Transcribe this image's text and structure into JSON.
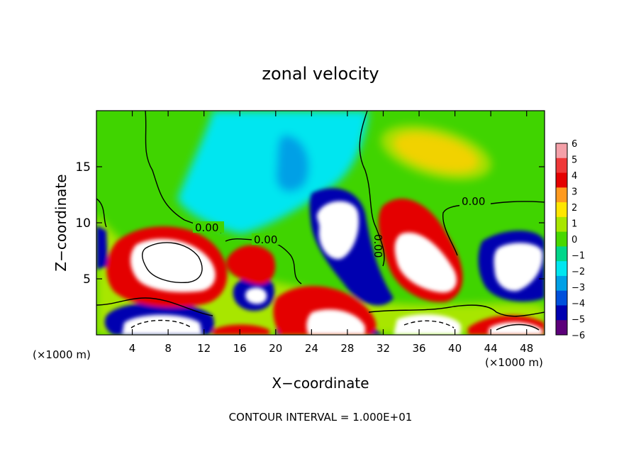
{
  "chart_data": {
    "type": "heatmap",
    "title": "zonal velocity",
    "xlabel": "X−coordinate",
    "ylabel": "Z−coordinate",
    "x_unit_left": "(×1000 m)",
    "x_unit_right": "(×1000 m)",
    "footer": "CONTOUR INTERVAL = 1.000E+01",
    "xlim": [
      0,
      50
    ],
    "ylim": [
      0,
      20
    ],
    "x_ticks": [
      4,
      8,
      12,
      16,
      20,
      24,
      28,
      32,
      36,
      40,
      44,
      48
    ],
    "y_ticks": [
      5,
      10,
      15
    ],
    "colorbar": {
      "levels": [
        6,
        5,
        4,
        3,
        2,
        1,
        0,
        -1,
        -2,
        -3,
        -4,
        -5,
        -6
      ],
      "colors": [
        "#f4a0a8",
        "#ef3838",
        "#e40000",
        "#ff9a1e",
        "#ffe600",
        "#a8e600",
        "#48d800",
        "#00d68a",
        "#00e6f0",
        "#00a0e6",
        "#0050dc",
        "#0000b0",
        "#5c007a"
      ]
    },
    "contour_labels": [
      "0.00",
      "0.00",
      "0.00",
      "0.00"
    ]
  }
}
